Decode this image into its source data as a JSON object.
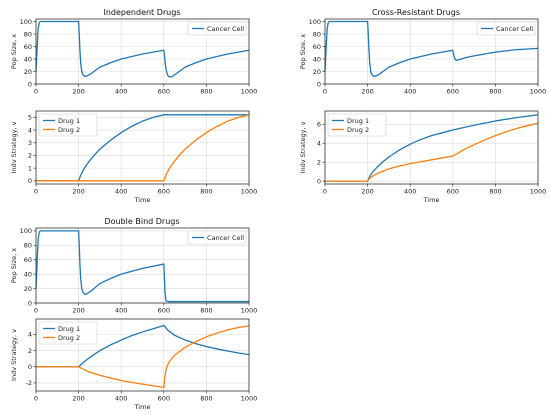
{
  "colors": {
    "blue": "#1f77b4",
    "orange": "#ff7f0e",
    "grid": "#d9d9d9",
    "axis": "#333333"
  },
  "chart_data": [
    {
      "panel": "independent",
      "title": "Independent Drugs",
      "top": {
        "type": "line",
        "ylabel": "Pop Size, x",
        "xlabel": "",
        "xlim": [
          0,
          1000
        ],
        "ylim": [
          0,
          104
        ],
        "xticks": [
          0,
          200,
          400,
          600,
          800,
          1000
        ],
        "yticks": [
          0,
          20,
          40,
          60,
          80,
          100
        ],
        "grid": true,
        "legend": "top-right",
        "series": [
          {
            "name": "Cancer Cell",
            "color": "blue",
            "x": [
              0,
              5,
              10,
              15,
              20,
              25,
              200,
              203,
              206,
              210,
              215,
              220,
              230,
              240,
              260,
              280,
              300,
              350,
              400,
              450,
              500,
              550,
              600,
              603,
              606,
              610,
              615,
              620,
              630,
              640,
              660,
              680,
              700,
              750,
              800,
              850,
              900,
              950,
              1000
            ],
            "y": [
              20,
              55,
              88,
              98,
              100,
              100,
              100,
              80,
              55,
              33,
              20,
              15,
              12,
              13,
              17,
              22,
              27,
              34,
              40,
              44,
              48,
              51,
              54,
              46,
              35,
              25,
              17,
              13,
              11,
              12,
              17,
              22,
              27,
              34,
              40,
              44,
              48,
              51,
              54
            ]
          }
        ]
      },
      "bottom": {
        "type": "line",
        "ylabel": "Indv Strategy, v",
        "xlabel": "Time",
        "xlim": [
          0,
          1000
        ],
        "ylim": [
          -0.25,
          5.5
        ],
        "xticks": [
          0,
          200,
          400,
          600,
          800,
          1000
        ],
        "yticks": [
          0,
          1,
          2,
          3,
          4,
          5
        ],
        "grid": true,
        "legend": "top-left",
        "series": [
          {
            "name": "Drug 1",
            "color": "blue",
            "x": [
              0,
              200,
              210,
              225,
              250,
              275,
              300,
              350,
              400,
              450,
              500,
              550,
              600,
              1000
            ],
            "y": [
              0,
              0,
              0.45,
              0.95,
              1.55,
              2.05,
              2.5,
              3.2,
              3.8,
              4.3,
              4.7,
              5.0,
              5.2,
              5.2
            ]
          },
          {
            "name": "Drug 2",
            "color": "orange",
            "x": [
              0,
              600,
              610,
              625,
              650,
              675,
              700,
              750,
              800,
              850,
              900,
              950,
              1000
            ],
            "y": [
              0,
              0,
              0.45,
              0.95,
              1.55,
              2.05,
              2.5,
              3.2,
              3.8,
              4.3,
              4.7,
              5.0,
              5.2
            ]
          }
        ]
      }
    },
    {
      "panel": "cross",
      "title": "Cross-Resistant Drugs",
      "top": {
        "type": "line",
        "ylabel": "Pop Size, x",
        "xlabel": "",
        "xlim": [
          0,
          1000
        ],
        "ylim": [
          0,
          104
        ],
        "xticks": [
          0,
          200,
          400,
          600,
          800,
          1000
        ],
        "yticks": [
          0,
          20,
          40,
          60,
          80,
          100
        ],
        "grid": true,
        "legend": "top-right",
        "series": [
          {
            "name": "Cancer Cell",
            "color": "blue",
            "x": [
              0,
              5,
              10,
              15,
              20,
              25,
              200,
              203,
              206,
              210,
              215,
              220,
              230,
              240,
              260,
              280,
              300,
              350,
              400,
              450,
              500,
              550,
              600,
              605,
              612,
              620,
              640,
              670,
              700,
              750,
              800,
              850,
              900,
              950,
              1000
            ],
            "y": [
              20,
              55,
              88,
              98,
              100,
              100,
              100,
              80,
              55,
              33,
              20,
              15,
              12,
              13,
              17,
              22,
              27,
              34,
              40,
              44,
              48,
              51,
              54,
              45,
              39,
              38,
              40,
              43,
              45,
              48,
              51,
              53,
              55,
              56,
              57
            ]
          }
        ]
      },
      "bottom": {
        "type": "line",
        "ylabel": "Indv Strategy, v",
        "xlabel": "Time",
        "xlim": [
          0,
          1000
        ],
        "ylim": [
          -0.3,
          7.4
        ],
        "xticks": [
          0,
          200,
          400,
          600,
          800,
          1000
        ],
        "yticks": [
          0,
          2,
          4,
          6
        ],
        "grid": true,
        "legend": "top-left",
        "series": [
          {
            "name": "Drug 1",
            "color": "blue",
            "x": [
              0,
              200,
              210,
              225,
              250,
              275,
              300,
              350,
              400,
              450,
              500,
              550,
              600,
              700,
              800,
              900,
              1000
            ],
            "y": [
              0,
              0,
              0.5,
              1.0,
              1.6,
              2.1,
              2.55,
              3.3,
              3.9,
              4.4,
              4.8,
              5.1,
              5.4,
              5.9,
              6.35,
              6.7,
              7.0
            ]
          },
          {
            "name": "Drug 2",
            "color": "orange",
            "x": [
              0,
              200,
              210,
              225,
              250,
              300,
              350,
              400,
              450,
              500,
              550,
              600,
              620,
              650,
              700,
              750,
              800,
              850,
              900,
              950,
              1000
            ],
            "y": [
              0,
              0,
              0.3,
              0.55,
              0.85,
              1.3,
              1.6,
              1.85,
              2.05,
              2.25,
              2.45,
              2.65,
              2.9,
              3.3,
              3.85,
              4.35,
              4.8,
              5.2,
              5.55,
              5.85,
              6.1
            ]
          }
        ]
      }
    },
    {
      "panel": "double",
      "title": "Double Bind Drugs",
      "top": {
        "type": "line",
        "ylabel": "Pop Size, x",
        "xlabel": "",
        "xlim": [
          0,
          1000
        ],
        "ylim": [
          0,
          104
        ],
        "xticks": [
          0,
          200,
          400,
          600,
          800,
          1000
        ],
        "yticks": [
          0,
          20,
          40,
          60,
          80,
          100
        ],
        "grid": true,
        "legend": "top-right",
        "series": [
          {
            "name": "Cancer Cell",
            "color": "blue",
            "x": [
              0,
              5,
              10,
              15,
              20,
              25,
              200,
              203,
              206,
              210,
              215,
              220,
              230,
              240,
              260,
              280,
              300,
              350,
              400,
              450,
              500,
              550,
              600,
              603,
              606,
              610,
              620,
              700,
              800,
              900,
              1000
            ],
            "y": [
              20,
              55,
              88,
              98,
              100,
              100,
              100,
              80,
              55,
              33,
              20,
              15,
              12,
              13,
              17,
              22,
              27,
              34,
              40,
              44,
              48,
              51,
              54,
              35,
              14,
              3,
              2,
              2,
              2,
              2,
              2
            ]
          }
        ]
      },
      "bottom": {
        "type": "line",
        "ylabel": "Indv Strategy, v",
        "xlabel": "Time",
        "xlim": [
          0,
          1000
        ],
        "ylim": [
          -3,
          5.9
        ],
        "xticks": [
          0,
          200,
          400,
          600,
          800,
          1000
        ],
        "yticks": [
          -2,
          0,
          2,
          4
        ],
        "grid": true,
        "legend": "top-left",
        "series": [
          {
            "name": "Drug 1",
            "color": "blue",
            "x": [
              0,
              200,
              225,
              250,
              300,
              350,
              400,
              450,
              500,
              550,
              600,
              620,
              650,
              700,
              750,
              800,
              850,
              900,
              950,
              1000
            ],
            "y": [
              0,
              0,
              0.6,
              1.1,
              2.0,
              2.7,
              3.3,
              3.85,
              4.3,
              4.7,
              5.1,
              4.5,
              3.9,
              3.3,
              2.85,
              2.5,
              2.2,
              1.95,
              1.7,
              1.5
            ]
          },
          {
            "name": "Drug 2",
            "color": "orange",
            "x": [
              0,
              200,
              225,
              250,
              300,
              350,
              400,
              450,
              500,
              550,
              600,
              605,
              612,
              625,
              650,
              700,
              750,
              800,
              850,
              900,
              950,
              1000
            ],
            "y": [
              0,
              0,
              -0.35,
              -0.65,
              -1.05,
              -1.4,
              -1.7,
              -1.95,
              -2.15,
              -2.35,
              -2.55,
              -1.2,
              -0.2,
              0.6,
              1.4,
              2.4,
              3.1,
              3.7,
              4.15,
              4.55,
              4.85,
              5.05
            ]
          }
        ]
      }
    }
  ]
}
